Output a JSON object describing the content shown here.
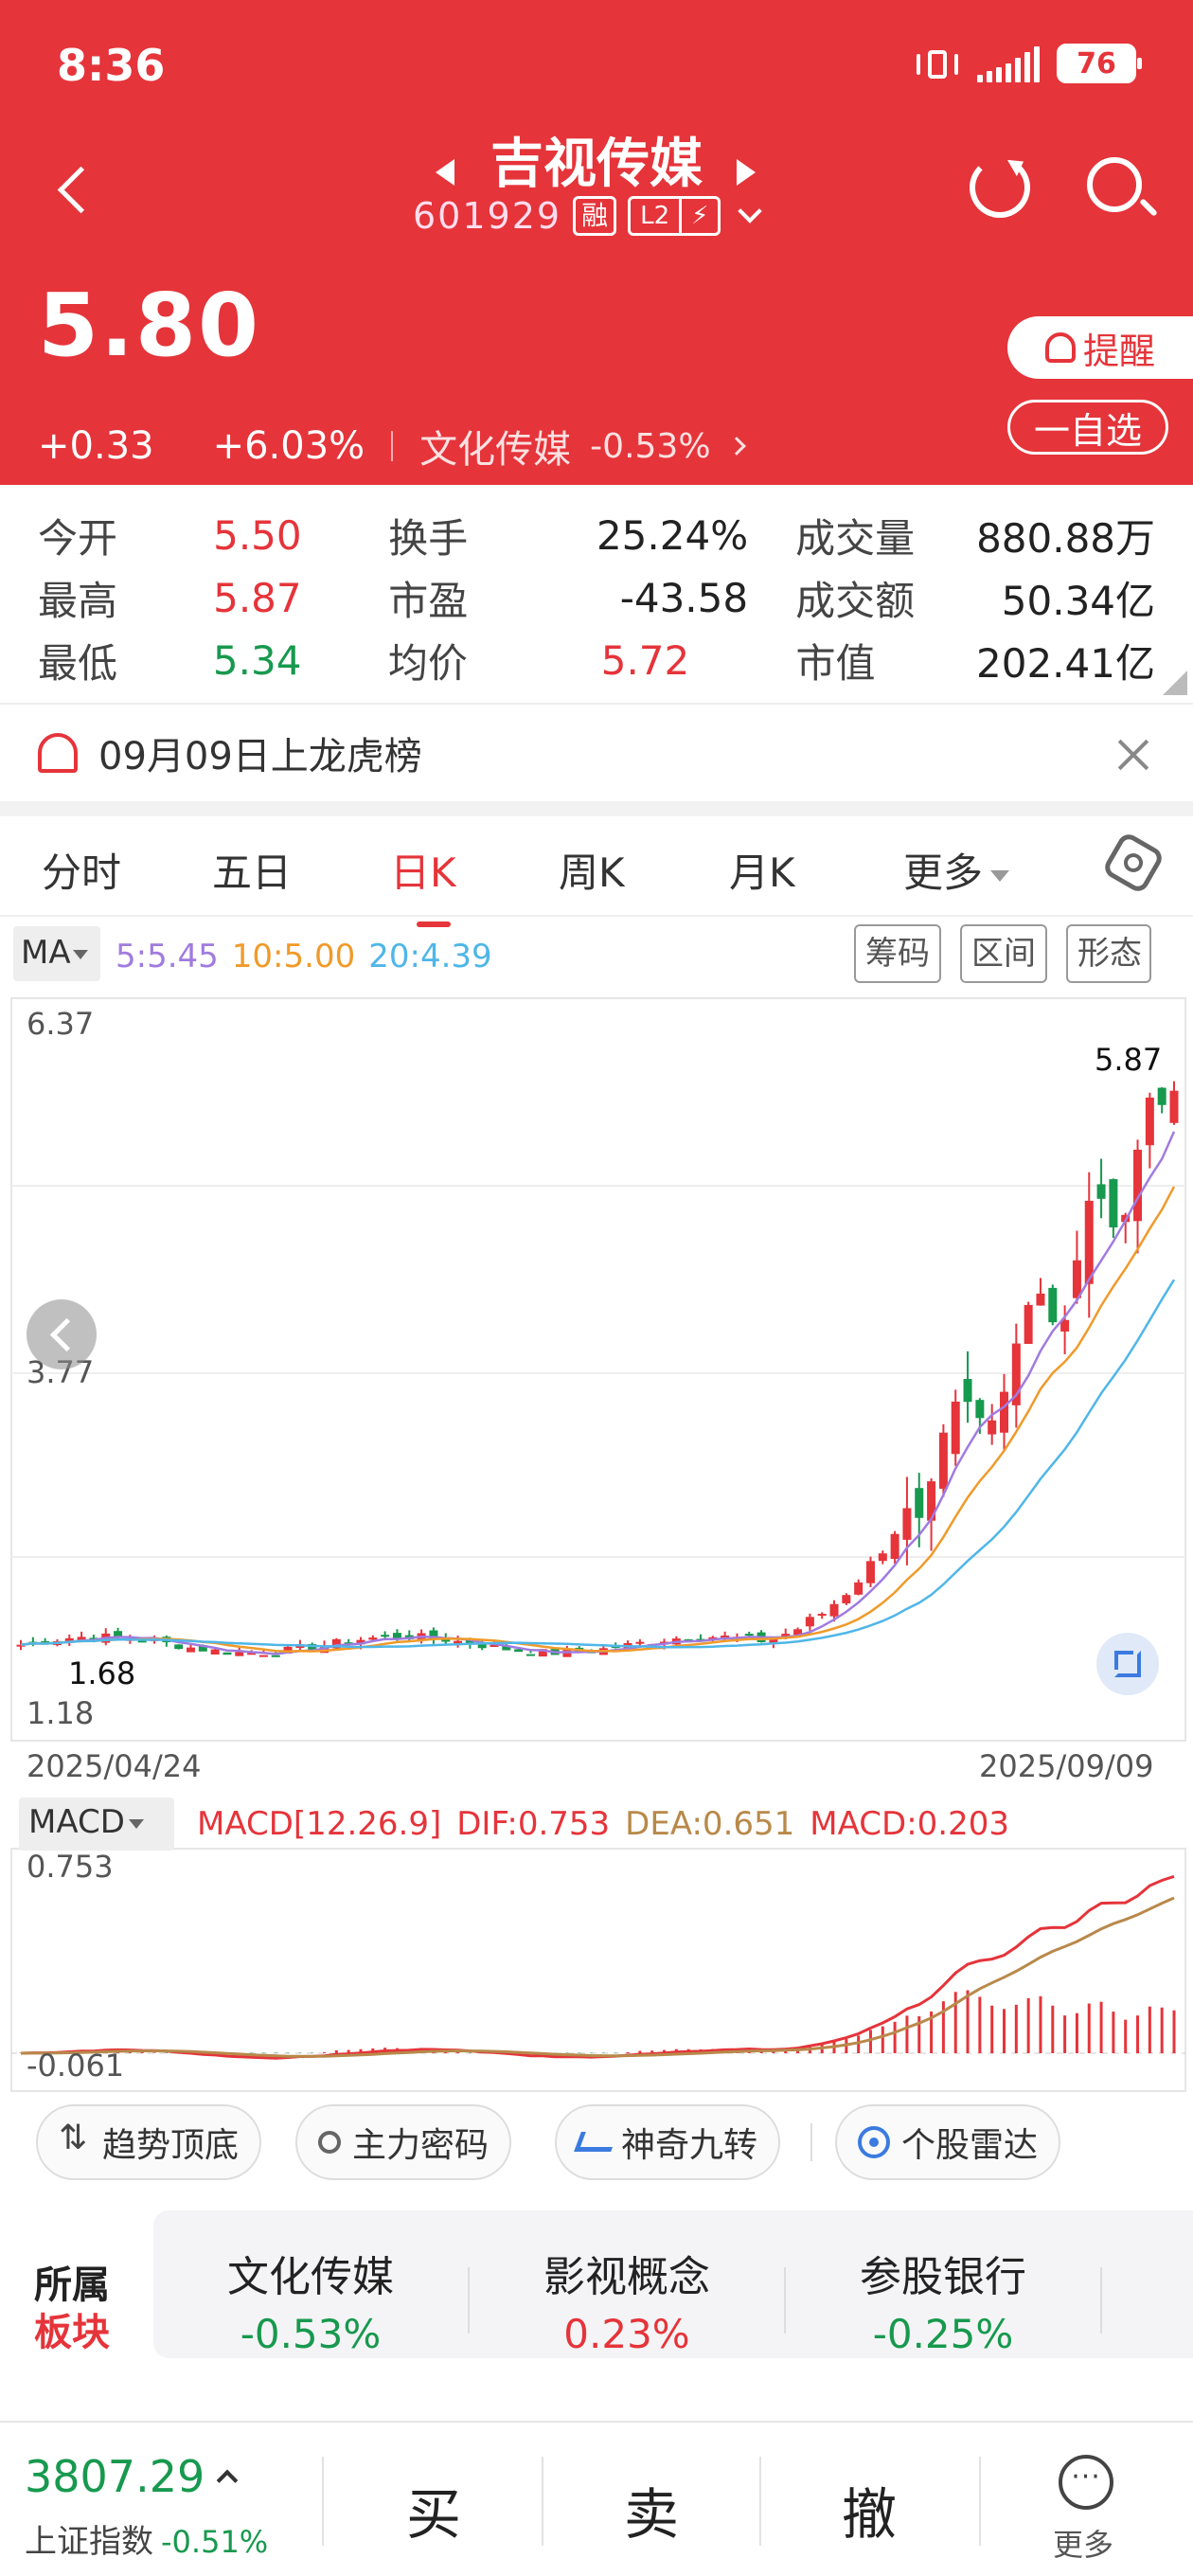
{
  "status": {
    "time": "8:36",
    "battery": "76"
  },
  "header": {
    "name": "吉视传媒",
    "code": "601929",
    "margin_tag": "融",
    "l2_tag": "L2",
    "price": "5.80",
    "change": "+0.33",
    "change_pct": "+6.03%",
    "sector_name": "文化传媒",
    "sector_pct": "-0.53%",
    "alert_label": "提醒",
    "watchlist_label": "一自选"
  },
  "stats": {
    "rows": [
      [
        {
          "k": "今开",
          "v": "5.50"
        },
        {
          "k": "换手",
          "v": "25.24%"
        },
        {
          "k": "成交量",
          "v": "880.88万"
        }
      ],
      [
        {
          "k": "最高",
          "v": "5.87"
        },
        {
          "k": "市盈",
          "v": "-43.58"
        },
        {
          "k": "成交额",
          "v": "50.34亿"
        }
      ],
      [
        {
          "k": "最低",
          "v": "5.34"
        },
        {
          "k": "均价",
          "v": "5.72"
        },
        {
          "k": "市值",
          "v": "202.41亿"
        }
      ]
    ]
  },
  "notice": {
    "text": "09月09日上龙虎榜"
  },
  "tabs": [
    "分时",
    "五日",
    "日K",
    "周K",
    "月K",
    "更多"
  ],
  "ma": {
    "label": "MA",
    "ma5": "5:5.45",
    "ma10": "10:5.00",
    "ma20": "20:4.39",
    "tools": [
      "筹码",
      "区间",
      "形态"
    ]
  },
  "kline": {
    "y_top": "6.37",
    "y_mid": "3.77",
    "y_bottom": "1.18",
    "max_label": "5.87",
    "min_label": "1.68",
    "date_start": "2025/04/24",
    "date_end": "2025/09/09"
  },
  "macd": {
    "label": "MACD",
    "params": "MACD[12.26.9]",
    "dif": "DIF:0.753",
    "dea": "DEA:0.651",
    "macd": "MACD:0.203",
    "y_top": "0.753",
    "y_bottom": "-0.061"
  },
  "tools": [
    "趋势顶底",
    "主力密码",
    "神奇九转",
    "个股雷达"
  ],
  "sector": {
    "label_top": "所属",
    "label_bottom": "板块",
    "items": [
      {
        "name": "文化传媒",
        "pct": "-0.53%"
      },
      {
        "name": "影视概念",
        "pct": "0.23%"
      },
      {
        "name": "参股银行",
        "pct": "-0.25%"
      }
    ]
  },
  "bottom": {
    "index_value": "3807.29",
    "index_name": "上证指数",
    "index_pct": "-0.51%",
    "buy": "买",
    "sell": "卖",
    "cancel": "撤",
    "more": "更多"
  },
  "chart_data": [
    {
      "type": "candlestick",
      "x_start": "2025/04/24",
      "x_end": "2025/09/09",
      "ylim": [
        1.18,
        6.37
      ],
      "y_ticks": [
        "6.37",
        "3.77",
        "1.18"
      ],
      "high": 5.87,
      "low": 1.68,
      "last_close": 5.8,
      "ma": {
        "MA5": 5.45,
        "MA10": 5.0,
        "MA20": 4.39
      },
      "colors": {
        "up": "#e5343a",
        "down": "#17994e",
        "ma5": "#a07be0",
        "ma10": "#f09a2a",
        "ma20": "#4fb6e8"
      }
    },
    {
      "type": "macd",
      "params": "MACD[12.26.9]",
      "DIF": 0.753,
      "DEA": 0.651,
      "MACD": 0.203,
      "ylim": [
        -0.061,
        0.753
      ]
    }
  ]
}
